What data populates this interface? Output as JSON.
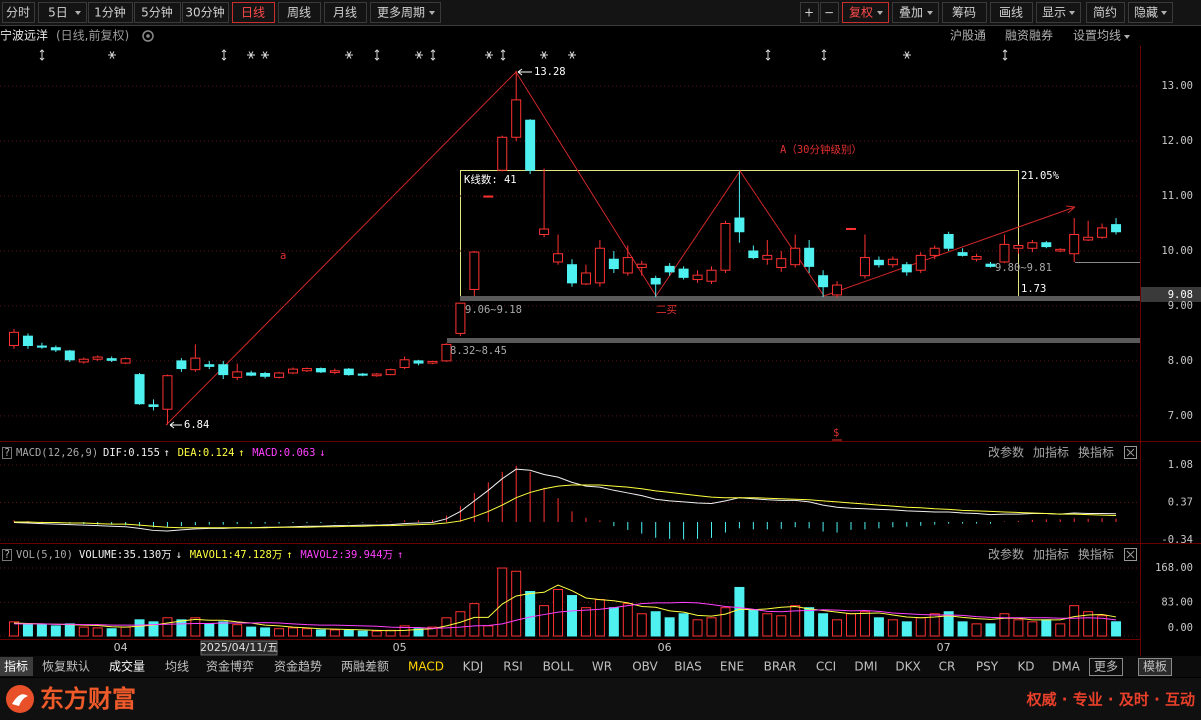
{
  "toolbar": {
    "left": [
      "分时",
      "5日",
      "1分钟",
      "5分钟",
      "30分钟",
      "日线",
      "周线",
      "月线",
      "更多周期"
    ],
    "right": [
      "+",
      "−",
      "复权",
      "叠加",
      "筹码",
      "画线",
      "显示",
      "简约",
      "隐藏"
    ]
  },
  "header": {
    "name": "宁波远洋",
    "mode": "(日线,前复权)",
    "links": [
      "沪股通",
      "融资融券",
      "设置均线"
    ]
  },
  "chart_data": [
    {
      "type": "candlestick",
      "up_color": "#ff3232",
      "down_color": "#4ef0f0",
      "grid": true,
      "categories": [
        null,
        null,
        null,
        null,
        null,
        null,
        null,
        null,
        "04",
        null,
        null,
        null,
        null,
        null,
        null,
        null,
        null,
        null,
        null,
        null,
        null,
        null,
        null,
        null,
        null,
        null,
        null,
        null,
        "05",
        null,
        null,
        null,
        null,
        null,
        null,
        null,
        null,
        null,
        null,
        null,
        null,
        null,
        null,
        null,
        null,
        null,
        null,
        "06",
        null,
        null,
        null,
        null,
        null,
        null,
        null,
        null,
        null,
        null,
        null,
        null,
        null,
        null,
        null,
        null,
        null,
        null,
        null,
        "07",
        null,
        null,
        null,
        null,
        null,
        null,
        null,
        null,
        null,
        null,
        null,
        null
      ],
      "cursor_date": "2025/04/11/五",
      "open": [
        8.28,
        8.45,
        8.27,
        8.24,
        8.18,
        7.98,
        8.03,
        8.04,
        7.96,
        7.75,
        7.2,
        7.12,
        8.0,
        7.84,
        7.93,
        7.93,
        7.7,
        7.78,
        7.77,
        7.7,
        7.78,
        7.82,
        7.86,
        7.79,
        7.85,
        7.76,
        7.73,
        7.75,
        7.88,
        8.0,
        7.96,
        8.0,
        8.5,
        9.3,
        10.99,
        11.47,
        12.07,
        12.38,
        10.3,
        9.8,
        9.75,
        9.4,
        9.42,
        9.85,
        9.6,
        9.7,
        9.5,
        9.72,
        9.67,
        9.48,
        9.45,
        9.65,
        10.6,
        10.0,
        9.85,
        9.7,
        9.75,
        10.05,
        9.55,
        9.2,
        10.4,
        9.55,
        9.83,
        9.75,
        9.75,
        9.65,
        9.92,
        10.3,
        9.97,
        9.85,
        9.76,
        9.8,
        10.05,
        10.05,
        10.15,
        10.0,
        9.95,
        10.2,
        10.25,
        10.48
      ],
      "high": [
        8.58,
        8.5,
        8.33,
        8.28,
        8.2,
        8.06,
        8.1,
        8.08,
        8.06,
        7.78,
        7.3,
        7.75,
        8.05,
        8.3,
        8.0,
        8.0,
        7.95,
        7.82,
        7.8,
        7.8,
        7.88,
        7.88,
        7.88,
        7.86,
        7.87,
        7.78,
        7.78,
        7.86,
        8.08,
        8.02,
        8.0,
        8.32,
        9.06,
        10.0,
        11.0,
        12.1,
        13.28,
        12.4,
        11.5,
        10.3,
        9.85,
        9.75,
        10.2,
        10.0,
        10.1,
        9.82,
        9.55,
        9.78,
        9.72,
        9.65,
        9.72,
        10.55,
        11.45,
        10.1,
        10.2,
        10.0,
        10.3,
        10.2,
        9.65,
        9.45,
        10.42,
        10.3,
        9.9,
        9.9,
        9.8,
        9.98,
        10.1,
        10.35,
        10.05,
        9.95,
        9.8,
        10.3,
        10.12,
        10.2,
        10.18,
        10.05,
        10.6,
        10.55,
        10.5,
        10.6
      ],
      "low": [
        8.22,
        8.22,
        8.22,
        8.16,
        7.98,
        7.95,
        8.0,
        7.98,
        7.94,
        7.2,
        7.1,
        6.84,
        7.8,
        7.8,
        7.85,
        7.67,
        7.65,
        7.72,
        7.68,
        7.68,
        7.76,
        7.8,
        7.78,
        7.76,
        7.73,
        7.72,
        7.71,
        7.74,
        7.85,
        7.92,
        7.94,
        7.98,
        8.45,
        9.18,
        10.98,
        11.45,
        12.0,
        11.4,
        10.25,
        9.75,
        9.35,
        9.38,
        9.35,
        9.6,
        9.55,
        9.55,
        9.16,
        9.55,
        9.48,
        9.42,
        9.4,
        9.6,
        10.15,
        9.85,
        9.75,
        9.62,
        9.7,
        9.6,
        9.16,
        9.15,
        10.38,
        9.5,
        9.7,
        9.7,
        9.55,
        9.6,
        9.85,
        10.0,
        9.9,
        9.81,
        9.7,
        9.78,
        9.95,
        9.98,
        10.05,
        9.98,
        9.8,
        10.18,
        10.22,
        10.3
      ],
      "close": [
        8.52,
        8.28,
        8.25,
        8.2,
        8.02,
        8.03,
        8.07,
        8.01,
        8.04,
        7.22,
        7.17,
        7.73,
        7.86,
        8.05,
        7.9,
        7.75,
        7.8,
        7.74,
        7.72,
        7.78,
        7.85,
        7.86,
        7.8,
        7.82,
        7.75,
        7.74,
        7.76,
        7.84,
        8.02,
        7.96,
        7.99,
        8.3,
        9.05,
        9.98,
        11.0,
        12.07,
        12.75,
        11.47,
        10.4,
        9.95,
        9.42,
        9.6,
        10.05,
        9.68,
        9.88,
        9.76,
        9.4,
        9.62,
        9.52,
        9.56,
        9.65,
        10.5,
        10.35,
        9.88,
        9.92,
        9.86,
        10.05,
        9.72,
        9.35,
        9.38,
        10.41,
        9.88,
        9.75,
        9.85,
        9.62,
        9.92,
        10.05,
        10.05,
        9.92,
        9.9,
        9.72,
        10.12,
        10.1,
        10.15,
        10.08,
        10.03,
        10.3,
        10.25,
        10.42,
        10.35
      ],
      "ylim": [
        6.56,
        13.84
      ],
      "yticks": [
        {
          "value": 7,
          "label": "7.00"
        },
        {
          "value": 8,
          "label": "8.00"
        },
        {
          "value": 9,
          "label": "9.00"
        },
        {
          "value": 10,
          "label": "10.00"
        },
        {
          "value": 11,
          "label": "11.00"
        },
        {
          "value": 12,
          "label": "12.00"
        },
        {
          "value": 13,
          "label": "13.00"
        }
      ],
      "price_marker": "9.08",
      "annotations": [
        "13.28",
        "6.84",
        "9.06~9.18",
        "8.32~8.45",
        "9.80~9.81",
        "K线数: 41",
        "21.05%",
        "1.73",
        "A（30分钟级别）",
        "二买",
        "a",
        "$"
      ]
    },
    {
      "type": "macd",
      "help": "?",
      "title": "MACD(12,26,9)",
      "tools": [
        "改参数",
        "加指标",
        "换指标"
      ],
      "ylim": [
        -0.36,
        1.42
      ],
      "yticks": [
        1.08,
        0.37,
        -0.34
      ],
      "bars": {
        "label": "MACD:0.063",
        "trend": "↓",
        "color": "#ff40ff",
        "up_color": "#ff3232",
        "down_color": "#4ef0f0",
        "values": [
          0.03,
          0.02,
          0.01,
          -0.01,
          -0.03,
          -0.04,
          -0.05,
          -0.05,
          -0.06,
          -0.08,
          -0.1,
          -0.1,
          -0.08,
          -0.06,
          -0.05,
          -0.05,
          -0.04,
          -0.04,
          -0.03,
          -0.03,
          -0.02,
          -0.02,
          -0.02,
          -0.01,
          -0.01,
          -0.01,
          0.01,
          0.01,
          0.03,
          0.03,
          0.04,
          0.12,
          0.3,
          0.55,
          0.75,
          0.95,
          1.06,
          0.95,
          0.65,
          0.45,
          0.2,
          0.08,
          0.03,
          -0.08,
          -0.15,
          -0.22,
          -0.3,
          -0.32,
          -0.33,
          -0.32,
          -0.3,
          -0.2,
          -0.12,
          -0.14,
          -0.14,
          -0.13,
          -0.1,
          -0.12,
          -0.18,
          -0.2,
          -0.15,
          -0.14,
          -0.12,
          -0.1,
          -0.09,
          -0.07,
          -0.05,
          -0.03,
          -0.03,
          -0.03,
          -0.03,
          0.01,
          0.02,
          0.04,
          0.05,
          0.05,
          0.07,
          0.06,
          0.07,
          0.063
        ]
      },
      "series": [
        {
          "label": "DIF:0.155",
          "trend": "↑",
          "color": "#f0f0f0",
          "values": [
            -0.01,
            -0.02,
            -0.03,
            -0.04,
            -0.05,
            -0.06,
            -0.07,
            -0.08,
            -0.09,
            -0.12,
            -0.16,
            -0.17,
            -0.15,
            -0.13,
            -0.12,
            -0.12,
            -0.11,
            -0.11,
            -0.1,
            -0.1,
            -0.09,
            -0.08,
            -0.08,
            -0.07,
            -0.07,
            -0.06,
            -0.06,
            -0.05,
            -0.03,
            -0.02,
            -0.01,
            0.06,
            0.2,
            0.4,
            0.6,
            0.82,
            1.0,
            0.98,
            0.9,
            0.85,
            0.75,
            0.68,
            0.66,
            0.6,
            0.55,
            0.5,
            0.43,
            0.4,
            0.38,
            0.36,
            0.35,
            0.4,
            0.46,
            0.44,
            0.42,
            0.41,
            0.41,
            0.38,
            0.32,
            0.28,
            0.26,
            0.25,
            0.24,
            0.23,
            0.21,
            0.2,
            0.19,
            0.19,
            0.17,
            0.16,
            0.14,
            0.15,
            0.15,
            0.16,
            0.16,
            0.15,
            0.17,
            0.16,
            0.16,
            0.155
          ]
        },
        {
          "label": "DEA:0.124",
          "trend": "↑",
          "color": "#ffff40",
          "values": [
            0,
            0,
            -0.01,
            -0.01,
            -0.02,
            -0.02,
            -0.03,
            -0.04,
            -0.04,
            -0.06,
            -0.08,
            -0.1,
            -0.11,
            -0.11,
            -0.11,
            -0.11,
            -0.11,
            -0.11,
            -0.11,
            -0.1,
            -0.1,
            -0.1,
            -0.09,
            -0.09,
            -0.08,
            -0.08,
            -0.07,
            -0.07,
            -0.06,
            -0.05,
            -0.04,
            -0.02,
            0.02,
            0.1,
            0.2,
            0.32,
            0.46,
            0.56,
            0.63,
            0.68,
            0.7,
            0.7,
            0.7,
            0.68,
            0.66,
            0.63,
            0.59,
            0.56,
            0.53,
            0.5,
            0.47,
            0.46,
            0.46,
            0.46,
            0.45,
            0.44,
            0.43,
            0.42,
            0.4,
            0.38,
            0.36,
            0.34,
            0.32,
            0.3,
            0.28,
            0.27,
            0.25,
            0.24,
            0.22,
            0.21,
            0.2,
            0.19,
            0.18,
            0.17,
            0.16,
            0.15,
            0.15,
            0.14,
            0.13,
            0.124
          ]
        }
      ]
    },
    {
      "type": "volume",
      "help": "?",
      "title": "VOL(5,10)",
      "tools": [
        "改参数",
        "加指标",
        "换指标"
      ],
      "ylim": [
        0,
        220
      ],
      "yticks": [
        {
          "value": 168,
          "label": "168.00"
        },
        {
          "value": 83,
          "label": "83.00"
        },
        {
          "value": 0,
          "label": "0.00"
        }
      ],
      "bars": {
        "label": "VOLUME:35.130万",
        "trend": "↓",
        "color": "#f0f0f0",
        "values": [
          35,
          30,
          28,
          25,
          30,
          22,
          20,
          18,
          22,
          40,
          35,
          45,
          40,
          45,
          30,
          35,
          28,
          22,
          20,
          18,
          20,
          18,
          15,
          15,
          14,
          12,
          12,
          14,
          25,
          18,
          22,
          45,
          60,
          80,
          25,
          168,
          160,
          110,
          75,
          115,
          100,
          70,
          90,
          70,
          80,
          55,
          60,
          45,
          55,
          40,
          45,
          70,
          120,
          65,
          55,
          50,
          75,
          70,
          55,
          40,
          55,
          60,
          45,
          40,
          35,
          45,
          55,
          60,
          35,
          30,
          30,
          55,
          40,
          35,
          40,
          30,
          75,
          60,
          50,
          35.13
        ]
      },
      "series": [
        {
          "label": "MAVOL1:47.128万",
          "trend": "↑",
          "color": "#ffff40",
          "values": [
            32,
            31,
            30,
            29,
            28,
            27,
            26,
            23,
            22,
            24,
            27,
            32,
            37,
            41,
            39,
            39,
            35,
            32,
            27,
            25,
            22,
            20,
            18,
            17,
            16,
            15,
            14,
            13,
            14,
            16,
            18,
            25,
            34,
            46,
            46,
            79,
            99,
            105,
            108,
            126,
            112,
            94,
            90,
            87,
            82,
            73,
            71,
            62,
            59,
            51,
            49,
            54,
            66,
            65,
            67,
            71,
            73,
            67,
            63,
            59,
            55,
            56,
            57,
            52,
            47,
            45,
            47,
            50,
            46,
            43,
            41,
            44,
            44,
            40,
            40,
            40,
            48,
            52,
            53,
            47.128
          ]
        },
        {
          "label": "MAVOL2:39.944万",
          "trend": "↑",
          "color": "#ff40ff",
          "values": [
            30,
            30,
            30,
            29,
            29,
            28,
            28,
            27,
            27,
            27,
            28,
            29,
            30,
            31,
            31,
            32,
            32,
            32,
            33,
            32,
            30,
            28,
            27,
            27,
            26,
            25,
            24,
            22,
            21,
            21,
            19,
            20,
            22,
            25,
            26,
            30,
            39,
            47,
            53,
            59,
            62,
            64,
            66,
            70,
            75,
            80,
            82,
            82,
            83,
            82,
            78,
            73,
            70,
            66,
            61,
            60,
            62,
            63,
            65,
            64,
            62,
            63,
            61,
            57,
            55,
            53,
            52,
            52,
            51,
            48,
            46,
            45,
            45,
            45,
            45,
            44,
            44,
            45,
            44,
            39.944
          ]
        }
      ]
    }
  ],
  "tabs": [
    "指标",
    "恢复默认",
    "成交量",
    "均线",
    "资金博弈",
    "资金趋势",
    "两融差额",
    "MACD",
    "KDJ",
    "RSI",
    "BOLL",
    "WR",
    "OBV",
    "BIAS",
    "ENE",
    "BRAR",
    "CCI",
    "DMI",
    "DKX",
    "CR",
    "PSY",
    "KD",
    "DMA",
    "更多",
    "模板"
  ],
  "footer": {
    "brand": "东方财富",
    "slogan": "权威 · 专业 · 及时 · 互动"
  }
}
